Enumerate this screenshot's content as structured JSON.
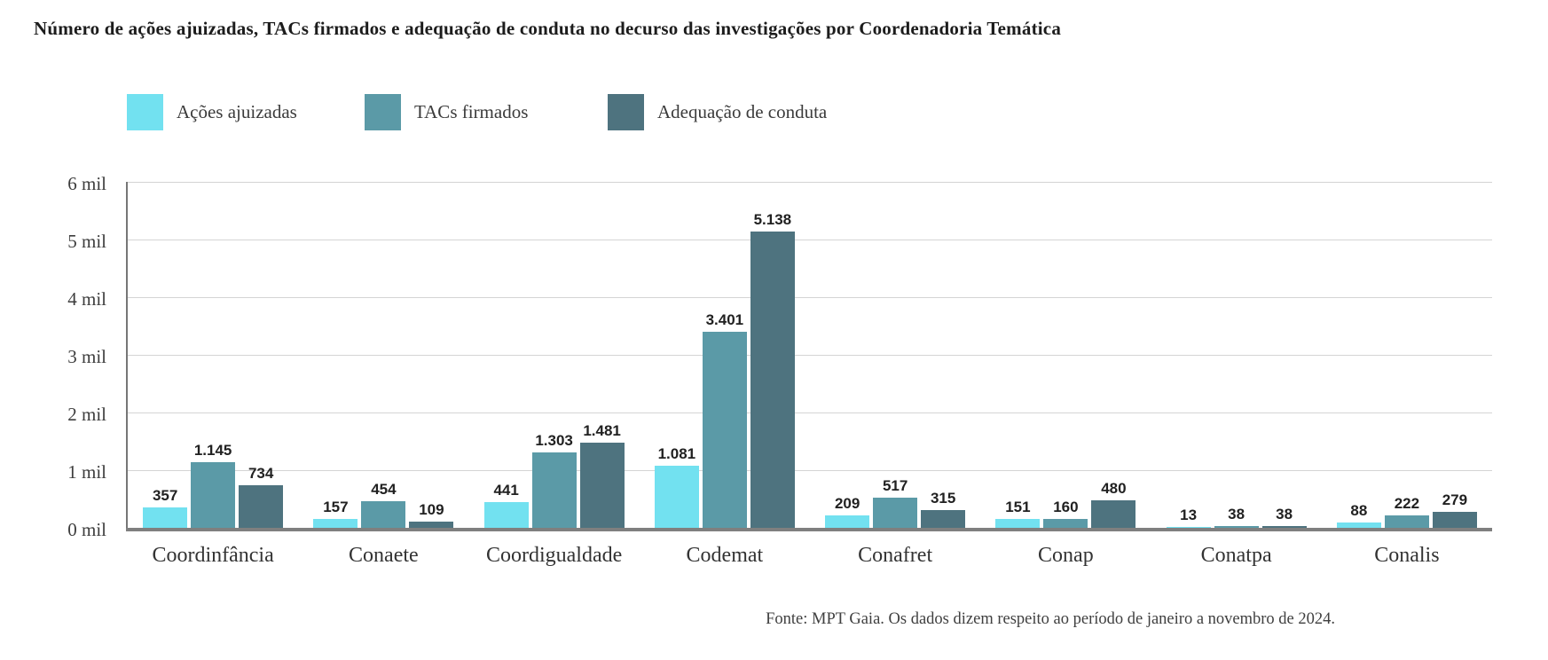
{
  "title": "Número de ações ajuizadas, TACs firmados e adequação de conduta no decurso das investigações por Coordenadoria Temática",
  "footer": "Fonte: MPT Gaia. Os dados dizem respeito ao período de janeiro a novembro de 2024.",
  "legend": [
    {
      "label": "Ações ajuizadas",
      "color": "#72e1f0"
    },
    {
      "label": "TACs firmados",
      "color": "#5b9aa7"
    },
    {
      "label": "Adequação de conduta",
      "color": "#4e737f"
    }
  ],
  "colors": {
    "series_1": "#72e1f0",
    "series_2": "#5b9aa7",
    "series_3": "#4e737f",
    "gridline": "#d4d4d4",
    "axis": "#7f7f7f",
    "text": "#212121"
  },
  "chart_data": {
    "type": "bar",
    "title": "Número de ações ajuizadas, TACs firmados e adequação de conduta no decurso das investigações por Coordenadoria Temática",
    "categories": [
      "Coordinfância",
      "Conaete",
      "Coordigualdade",
      "Codemat",
      "Conafret",
      "Conap",
      "Conatpa",
      "Conalis"
    ],
    "series": [
      {
        "name": "Ações ajuizadas",
        "color": "#72e1f0",
        "values": [
          357,
          157,
          441,
          1081,
          209,
          151,
          13,
          88
        ],
        "labels": [
          "357",
          "157",
          "441",
          "1.081",
          "209",
          "151",
          "13",
          "88"
        ]
      },
      {
        "name": "TACs firmados",
        "color": "#5b9aa7",
        "values": [
          1145,
          454,
          1303,
          3401,
          517,
          160,
          38,
          222
        ],
        "labels": [
          "1.145",
          "454",
          "1.303",
          "3.401",
          "517",
          "160",
          "38",
          "222"
        ]
      },
      {
        "name": "Adequação de conduta",
        "color": "#4e737f",
        "values": [
          734,
          109,
          1481,
          5138,
          315,
          480,
          38,
          279
        ],
        "labels": [
          "734",
          "109",
          "1.481",
          "5.138",
          "315",
          "480",
          "38",
          "279"
        ]
      }
    ],
    "y_axis": {
      "tick_labels": [
        "0 mil",
        "1 mil",
        "2 mil",
        "3 mil",
        "4 mil",
        "5 mil",
        "6 mil"
      ],
      "min": 0,
      "max": 6000,
      "tick_step": 1000
    },
    "grid": true,
    "legend_position": "top",
    "source": "Fonte: MPT Gaia. Os dados dizem respeito ao período de janeiro a novembro de 2024."
  }
}
